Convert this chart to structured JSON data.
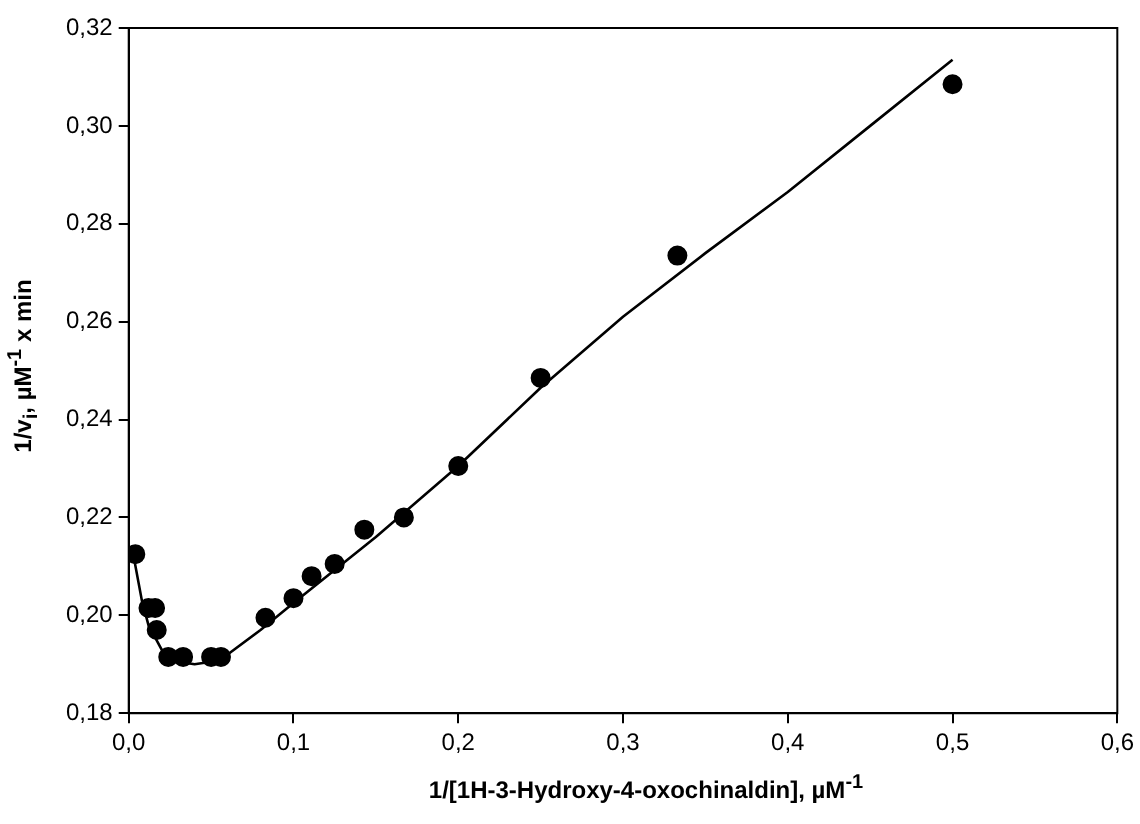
{
  "chart_data": {
    "type": "scatter",
    "xlabel": "1/[1H-3-Hydroxy-4-oxochinaldin], µM$^{-1}$",
    "ylabel": "1/v$_{i}$, µM$^{-1}$ x min",
    "xlim": [
      0,
      0.6
    ],
    "xticks": [
      {
        "value": 0,
        "label": "0,0"
      },
      {
        "value": 0.1,
        "label": "0,1"
      },
      {
        "value": 0.2,
        "label": "0,2"
      },
      {
        "value": 0.3,
        "label": "0,3"
      },
      {
        "value": 0.4,
        "label": "0,4"
      },
      {
        "value": 0.5,
        "label": "0,5"
      },
      {
        "value": 0.6,
        "label": "0,6"
      }
    ],
    "ylim": [
      0.18,
      0.32
    ],
    "yticks": [
      {
        "value": 0.18,
        "label": "0,18"
      },
      {
        "value": 0.2,
        "label": "0,20"
      },
      {
        "value": 0.22,
        "label": "0,22"
      },
      {
        "value": 0.24,
        "label": "0,24"
      },
      {
        "value": 0.26,
        "label": "0,26"
      },
      {
        "value": 0.28,
        "label": "0,28"
      },
      {
        "value": 0.3,
        "label": "0,30"
      },
      {
        "value": 0.32,
        "label": "0,32"
      }
    ],
    "grid": false,
    "legend": false,
    "series": [
      {
        "color": "#000000",
        "marker": "circle",
        "x": [
          0.004,
          0.012,
          0.016,
          0.017,
          0.024,
          0.033,
          0.05,
          0.056,
          0.083,
          0.1,
          0.111,
          0.125,
          0.143,
          0.167,
          0.2,
          0.25,
          0.333,
          0.5
        ],
        "values": [
          0.2125,
          0.2015,
          0.2015,
          0.197,
          0.1915,
          0.1915,
          0.1915,
          0.1915,
          0.1995,
          0.2035,
          0.208,
          0.2105,
          0.2175,
          0.22,
          0.2305,
          0.2485,
          0.2735,
          0.3085
        ]
      },
      {
        "type": "line",
        "color": "#000000",
        "marker": "none",
        "line_style": "solid",
        "x": [
          0.003,
          0.008,
          0.012,
          0.02,
          0.03,
          0.04,
          0.05,
          0.06,
          0.08,
          0.1,
          0.15,
          0.2,
          0.25,
          0.3,
          0.35,
          0.4,
          0.45,
          0.5
        ],
        "values": [
          0.212,
          0.203,
          0.198,
          0.193,
          0.1905,
          0.19,
          0.1905,
          0.192,
          0.197,
          0.2025,
          0.216,
          0.2305,
          0.2465,
          0.261,
          0.274,
          0.2865,
          0.3,
          0.3135
        ]
      }
    ]
  }
}
